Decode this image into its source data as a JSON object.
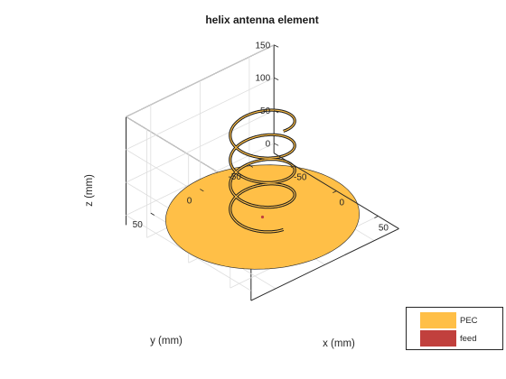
{
  "chart_data": {
    "type": "3d-surface",
    "title": "helix antenna element",
    "xlabel": "x (mm)",
    "ylabel": "y (mm)",
    "zlabel": "z (mm)",
    "xlim": [
      -75,
      75
    ],
    "ylim": [
      -75,
      75
    ],
    "zlim": [
      -15,
      150
    ],
    "xticks": [
      -50,
      0,
      50
    ],
    "yticks": [
      -50,
      0,
      50
    ],
    "zticks": [
      0,
      50,
      100,
      150
    ],
    "xtick_labels": [
      "-50",
      "0",
      "50"
    ],
    "ytick_labels": [
      "-50",
      "0",
      "50"
    ],
    "ztick_labels": [
      "0",
      "50",
      "100",
      "150"
    ],
    "grid": true,
    "legend_position": "bottom-right",
    "ground_plane": {
      "shape": "disc",
      "radius": 75,
      "z": 0,
      "material": "PEC",
      "color": "#FFBF47"
    },
    "helix": {
      "radius": 25,
      "turns": 4,
      "z_start": 0,
      "z_end": 150,
      "material": "PEC",
      "color": "#FFBF47",
      "edge_color": "#1a1a1a"
    },
    "feed": {
      "x": 0,
      "y": 0,
      "z": 0,
      "color": "#C1403D"
    },
    "series": [
      {
        "name": "PEC",
        "color": "#FFBF47"
      },
      {
        "name": "feed",
        "color": "#C1403D"
      }
    ]
  }
}
